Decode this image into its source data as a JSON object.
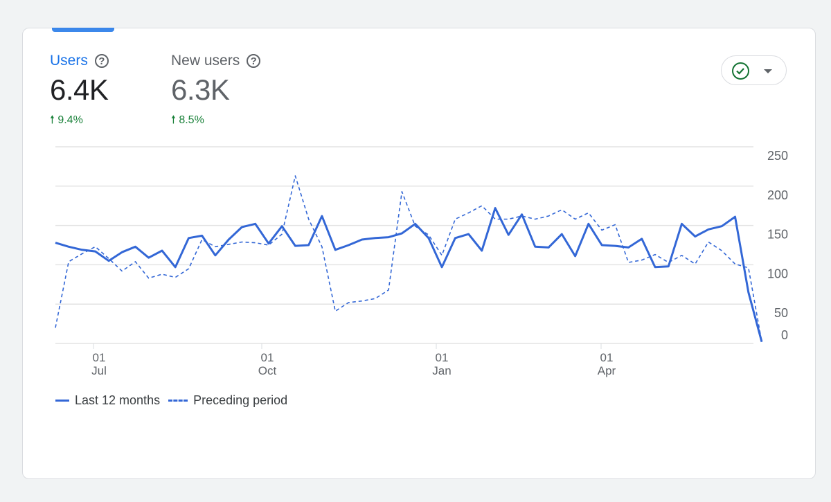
{
  "metrics": [
    {
      "label": "Users",
      "value": "6.4K",
      "delta": "9.4%",
      "active": true
    },
    {
      "label": "New users",
      "value": "6.3K",
      "delta": "8.5%",
      "active": false
    }
  ],
  "colors": {
    "accent": "#1a73e8",
    "line": "#3367d6",
    "positive": "#188038",
    "check": "#137333"
  },
  "icons": {
    "help": "help-circle-icon",
    "delta": "arrow-up-icon",
    "compare": "check-circle-icon",
    "caret": "caret-down-icon"
  },
  "chart_data": {
    "type": "line",
    "ylim": [
      0,
      250
    ],
    "yticks": [
      0,
      50,
      100,
      150,
      200,
      250
    ],
    "xticks": [
      {
        "day": "01",
        "month": "Jul"
      },
      {
        "day": "01",
        "month": "Oct"
      },
      {
        "day": "01",
        "month": "Jan"
      },
      {
        "day": "01",
        "month": "Apr"
      }
    ],
    "grid": true,
    "legend": "bottom-left",
    "series": [
      {
        "name": "Last 12 months",
        "style": "solid",
        "values": [
          128,
          123,
          119,
          117,
          105,
          116,
          123,
          109,
          118,
          97,
          134,
          137,
          112,
          132,
          148,
          152,
          127,
          149,
          124,
          125,
          162,
          119,
          125,
          132,
          134,
          135,
          140,
          152,
          134,
          97,
          134,
          139,
          118,
          172,
          138,
          164,
          123,
          122,
          139,
          111,
          152,
          125,
          124,
          122,
          133,
          97,
          98,
          152,
          136,
          145,
          149,
          161,
          65,
          2
        ]
      },
      {
        "name": "Preceding period",
        "style": "dashed",
        "values": [
          20,
          104,
          114,
          123,
          108,
          92,
          104,
          83,
          88,
          84,
          95,
          132,
          123,
          126,
          129,
          128,
          125,
          139,
          213,
          158,
          123,
          41,
          52,
          54,
          57,
          68,
          193,
          149,
          138,
          112,
          158,
          166,
          175,
          158,
          158,
          162,
          158,
          162,
          170,
          158,
          166,
          144,
          151,
          103,
          106,
          113,
          103,
          112,
          101,
          129,
          118,
          101,
          96,
          2
        ]
      }
    ]
  }
}
